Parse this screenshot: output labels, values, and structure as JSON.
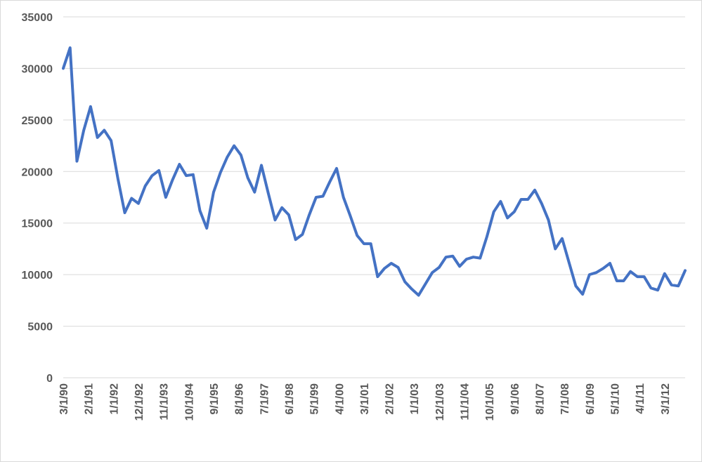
{
  "chart_data": {
    "type": "line",
    "title": "",
    "xlabel": "",
    "ylabel": "",
    "ylim": [
      0,
      35000
    ],
    "y_ticks": [
      0,
      5000,
      10000,
      15000,
      20000,
      25000,
      30000,
      35000
    ],
    "x_tick_labels": [
      "3/1/90",
      "2/1/91",
      "1/1/92",
      "12/1/92",
      "11/1/93",
      "10/1/94",
      "9/1/95",
      "8/1/96",
      "7/1/97",
      "6/1/98",
      "5/1/99",
      "4/1/00",
      "3/1/01",
      "2/1/02",
      "1/1/03",
      "12/1/03",
      "11/1/04",
      "10/1/05",
      "9/1/06",
      "8/1/07",
      "7/1/08",
      "6/1/09",
      "5/1/10",
      "4/1/11",
      "3/1/12"
    ],
    "grid": true,
    "legend": "none",
    "line_color": "#4472c4",
    "series": [
      {
        "values": [
          30000,
          32000,
          21000,
          24000,
          26300,
          23300,
          24000,
          23000,
          19300,
          16000,
          17400,
          16900,
          18600,
          19600,
          20100,
          17500,
          19200,
          20700,
          19600,
          19700,
          16200,
          14500,
          18000,
          19900,
          21400,
          22500,
          21600,
          19400,
          18000,
          20600,
          17900,
          15300,
          16500,
          15800,
          13400,
          13900,
          15800,
          17500,
          17600,
          19000,
          20300,
          17500,
          15700,
          13800,
          13000,
          13000,
          9800,
          10600,
          11100,
          10700,
          9300,
          8600,
          8000,
          9100,
          10200,
          10700,
          11700,
          11800,
          10800,
          11500,
          11700,
          11600,
          13700,
          16100,
          17100,
          15500,
          16100,
          17300,
          17300,
          18200,
          16900,
          15300,
          12500,
          13500,
          11200,
          8900,
          8100,
          10000,
          10200,
          10600,
          11100,
          9400,
          9400,
          10300,
          9800,
          9800,
          8700,
          8500,
          10100,
          9000,
          8900,
          10400
        ]
      }
    ]
  }
}
